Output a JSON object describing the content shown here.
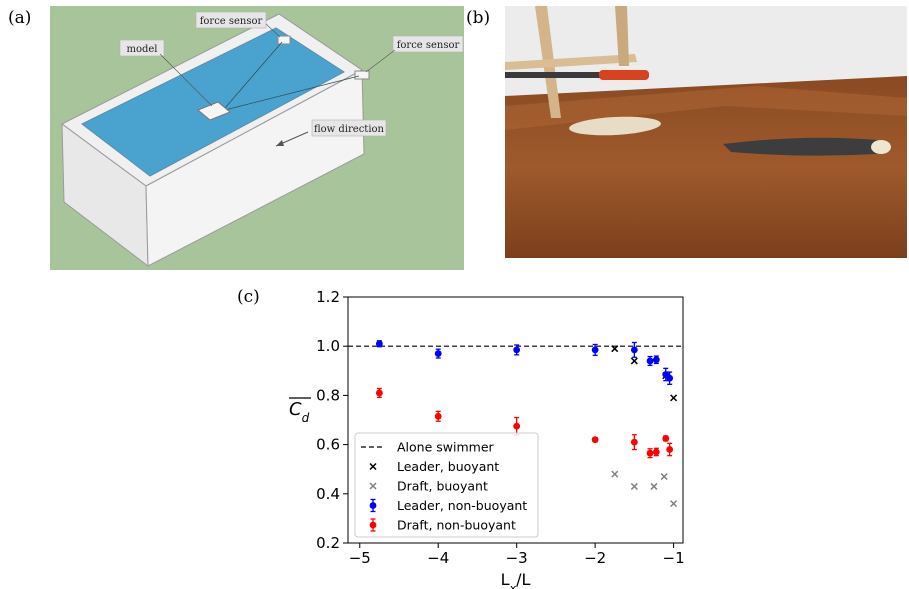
{
  "panels": {
    "a": {
      "label": "(a)",
      "annotations": {
        "force_sensor_top": "force sensor",
        "force_sensor_right": "force sensor",
        "model": "model",
        "flow_direction": "flow direction"
      }
    },
    "b": {
      "label": "(b)"
    },
    "c": {
      "label": "(c)"
    }
  },
  "colors": {
    "leader_non_buoyant": "#0000ff",
    "draft_non_buoyant": "#ff0000",
    "leader_buoyant": "#000000",
    "draft_buoyant": "#808080",
    "water": "#4aa3cf",
    "background_a": "#a8c49a",
    "tank": "#eeeeee"
  },
  "chart_data": {
    "type": "scatter",
    "xlabel_main": "L",
    "xlabel_sub": "x",
    "xlabel_tail": "/L",
    "ylabel": "C",
    "ylabel_sub": "d",
    "xlim": [
      -5.15,
      -0.88
    ],
    "ylim": [
      0.2,
      1.2
    ],
    "xticks": [
      -5,
      -4,
      -3,
      -2,
      -1
    ],
    "xtick_labels": [
      "−5",
      "−4",
      "−3",
      "−2",
      "−1"
    ],
    "yticks": [
      0.2,
      0.4,
      0.6,
      0.8,
      1.0,
      1.2
    ],
    "ytick_labels": [
      "0.2",
      "0.4",
      "0.6",
      "0.8",
      "1.0",
      "1.2"
    ],
    "legend_position": "lower-left",
    "reference_line": {
      "name": "Alone swimmer",
      "y": 1.0,
      "style": "dashed"
    },
    "series": [
      {
        "name": "Leader, buoyant",
        "marker": "x",
        "color": "#000000",
        "x": [
          -1.75,
          -1.5,
          -1.1,
          -1.0
        ],
        "y": [
          0.99,
          0.94,
          0.88,
          0.79
        ]
      },
      {
        "name": "Draft, buoyant",
        "marker": "x",
        "color": "#808080",
        "x": [
          -1.75,
          -1.5,
          -1.25,
          -1.12,
          -1.0
        ],
        "y": [
          0.48,
          0.43,
          0.43,
          0.47,
          0.36
        ]
      },
      {
        "name": "Leader, non-buoyant",
        "marker": "dot",
        "color": "#0000ff",
        "x": [
          -4.75,
          -4.0,
          -3.0,
          -2.0,
          -1.5,
          -1.3,
          -1.22,
          -1.1,
          -1.05
        ],
        "y": [
          1.01,
          0.97,
          0.985,
          0.985,
          0.985,
          0.94,
          0.945,
          0.885,
          0.87
        ],
        "err": [
          0.012,
          0.018,
          0.02,
          0.022,
          0.03,
          0.018,
          0.015,
          0.025,
          0.025
        ]
      },
      {
        "name": "Draft, non-buoyant",
        "marker": "dot",
        "color": "#ff0000",
        "x": [
          -4.75,
          -4.0,
          -3.0,
          -2.0,
          -1.5,
          -1.3,
          -1.22,
          -1.1,
          -1.05
        ],
        "y": [
          0.81,
          0.715,
          0.675,
          0.62,
          0.61,
          0.565,
          0.57,
          0.625,
          0.58
        ],
        "err": [
          0.018,
          0.02,
          0.035,
          0.008,
          0.03,
          0.018,
          0.015,
          0.01,
          0.025
        ]
      }
    ]
  }
}
